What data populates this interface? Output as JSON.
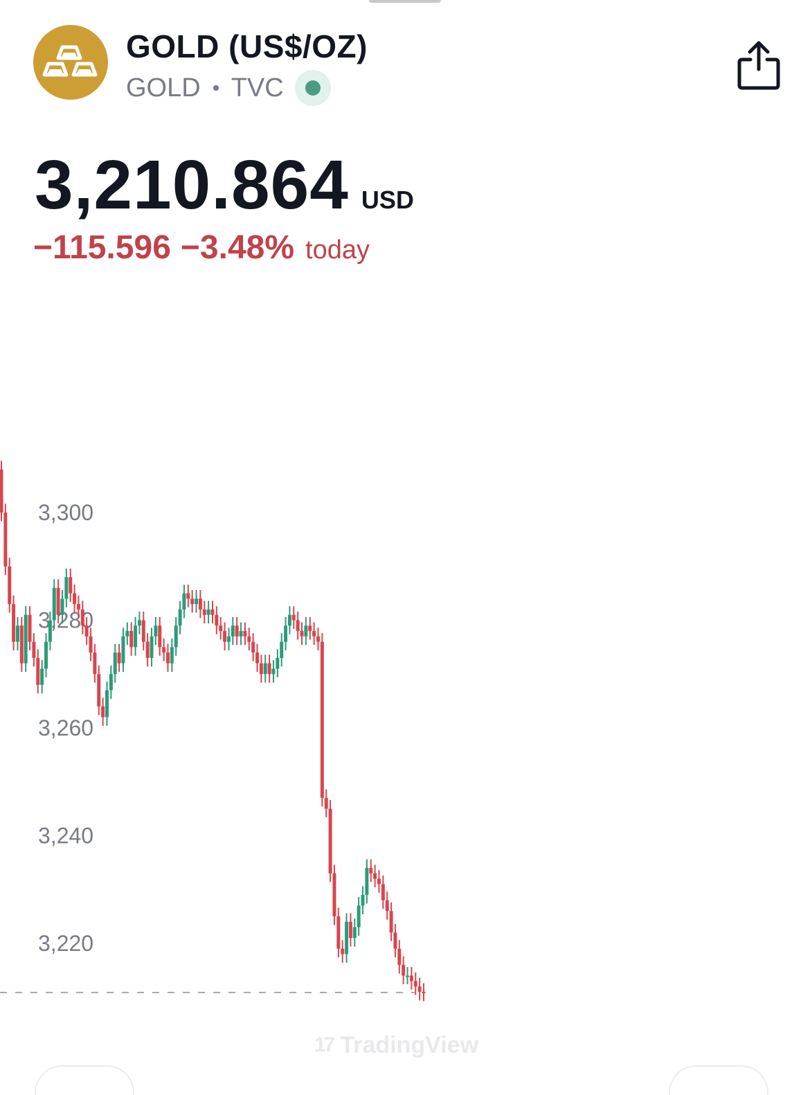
{
  "header": {
    "title": "GOLD (US$/OZ)",
    "symbol": "GOLD",
    "exchange": "TVC",
    "logo_icon": "gold-bars-icon",
    "logo_color": "#cc9e34",
    "live_status_color": "#4a9c84",
    "share_icon": "share-icon"
  },
  "quote": {
    "price": "3,210.864",
    "currency": "USD",
    "change": "−115.596",
    "change_percent": "−3.48%",
    "change_period": "today",
    "change_color": "#c0424a"
  },
  "watermark": {
    "text": "TradingView",
    "logo": "17"
  },
  "chart_data": {
    "type": "candlestick",
    "up_color": "#2e9a7a",
    "down_color": "#d8464e",
    "ylim": [
      3206,
      3320
    ],
    "y_ticks": [
      "3,300",
      "3,280",
      "3,260",
      "3,240",
      "3,220"
    ],
    "y_tick_values": [
      3300,
      3280,
      3260,
      3240,
      3220
    ],
    "last_price": 3210.864,
    "last_price_line": "dashed",
    "grid": false,
    "closes": [
      3300,
      3290,
      3283,
      3276,
      3279,
      3272,
      3281,
      3276,
      3273,
      3268,
      3271,
      3276,
      3280,
      3286,
      3281,
      3284,
      3288,
      3285,
      3283,
      3282,
      3279,
      3277,
      3274,
      3270,
      3264,
      3262,
      3267,
      3270,
      3274,
      3272,
      3277,
      3278,
      3275,
      3279,
      3280,
      3276,
      3273,
      3277,
      3279,
      3275,
      3274,
      3272,
      3275,
      3279,
      3282,
      3285,
      3284,
      3283,
      3284,
      3282,
      3281,
      3282,
      3281,
      3279,
      3278,
      3276,
      3277,
      3279,
      3277,
      3278,
      3277,
      3276,
      3274,
      3272,
      3270,
      3272,
      3270,
      3271,
      3273,
      3276,
      3279,
      3281,
      3280,
      3278,
      3277,
      3279,
      3278,
      3277,
      3276,
      3247,
      3245,
      3233,
      3225,
      3219,
      3218,
      3224,
      3221,
      3223,
      3227,
      3229,
      3234,
      3233,
      3232,
      3231,
      3228,
      3226,
      3222,
      3219,
      3216,
      3214,
      3214,
      3213,
      3212,
      3211,
      3210.864
    ]
  }
}
